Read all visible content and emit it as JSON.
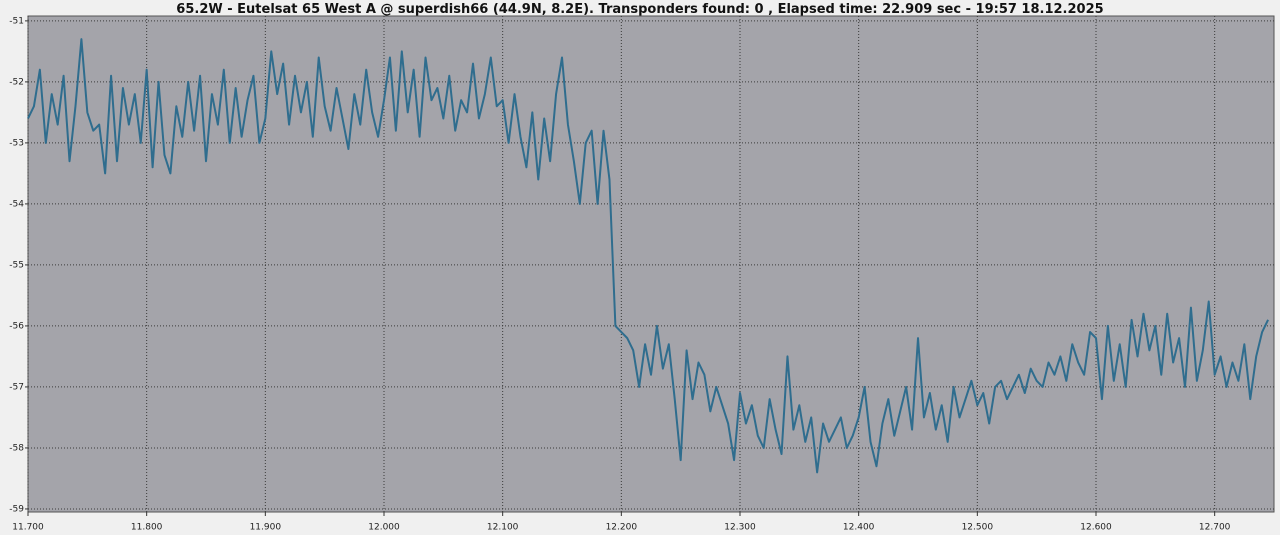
{
  "chart_data": {
    "type": "line",
    "title": "65.2W - Eutelsat 65 West A @ superdish66 (44.9N, 8.2E). Transponders found: 0 , Elapsed time: 22.909 sec - 19:57 18.12.2025",
    "color": "#2f6d8e",
    "grid": true,
    "xlim": [
      11.7,
      12.75
    ],
    "ylim": [
      -59.05,
      -50.92
    ],
    "xticks": [
      {
        "value": 11.7,
        "label": "11.700"
      },
      {
        "value": 11.8,
        "label": "11.800"
      },
      {
        "value": 11.9,
        "label": "11.900"
      },
      {
        "value": 12.0,
        "label": "12.000"
      },
      {
        "value": 12.1,
        "label": "12.100"
      },
      {
        "value": 12.2,
        "label": "12.200"
      },
      {
        "value": 12.3,
        "label": "12.300"
      },
      {
        "value": 12.4,
        "label": "12.400"
      },
      {
        "value": 12.5,
        "label": "12.500"
      },
      {
        "value": 12.6,
        "label": "12.600"
      },
      {
        "value": 12.7,
        "label": "12.700"
      }
    ],
    "yticks": [
      -51,
      -52,
      -53,
      -54,
      -55,
      -56,
      -57,
      -58,
      -59
    ],
    "x": [
      11.7,
      11.705,
      11.71,
      11.715,
      11.72,
      11.725,
      11.73,
      11.735,
      11.74,
      11.745,
      11.75,
      11.755,
      11.76,
      11.765,
      11.77,
      11.775,
      11.78,
      11.785,
      11.79,
      11.795,
      11.8,
      11.805,
      11.81,
      11.815,
      11.82,
      11.825,
      11.83,
      11.835,
      11.84,
      11.845,
      11.85,
      11.855,
      11.86,
      11.865,
      11.87,
      11.875,
      11.88,
      11.885,
      11.89,
      11.895,
      11.9,
      11.905,
      11.91,
      11.915,
      11.92,
      11.925,
      11.93,
      11.935,
      11.94,
      11.945,
      11.95,
      11.955,
      11.96,
      11.965,
      11.97,
      11.975,
      11.98,
      11.985,
      11.99,
      11.995,
      12.0,
      12.005,
      12.01,
      12.015,
      12.02,
      12.025,
      12.03,
      12.035,
      12.04,
      12.045,
      12.05,
      12.055,
      12.06,
      12.065,
      12.07,
      12.075,
      12.08,
      12.085,
      12.09,
      12.095,
      12.1,
      12.105,
      12.11,
      12.115,
      12.12,
      12.125,
      12.13,
      12.135,
      12.14,
      12.145,
      12.15,
      12.155,
      12.16,
      12.165,
      12.17,
      12.175,
      12.18,
      12.185,
      12.19,
      12.195,
      12.2,
      12.205,
      12.21,
      12.215,
      12.22,
      12.225,
      12.23,
      12.235,
      12.24,
      12.245,
      12.25,
      12.255,
      12.26,
      12.265,
      12.27,
      12.275,
      12.28,
      12.285,
      12.29,
      12.295,
      12.3,
      12.305,
      12.31,
      12.315,
      12.32,
      12.325,
      12.33,
      12.335,
      12.34,
      12.345,
      12.35,
      12.355,
      12.36,
      12.365,
      12.37,
      12.375,
      12.38,
      12.385,
      12.39,
      12.395,
      12.4,
      12.405,
      12.41,
      12.415,
      12.42,
      12.425,
      12.43,
      12.435,
      12.44,
      12.445,
      12.45,
      12.455,
      12.46,
      12.465,
      12.47,
      12.475,
      12.48,
      12.485,
      12.49,
      12.495,
      12.5,
      12.505,
      12.51,
      12.515,
      12.52,
      12.525,
      12.53,
      12.535,
      12.54,
      12.545,
      12.55,
      12.555,
      12.56,
      12.565,
      12.57,
      12.575,
      12.58,
      12.585,
      12.59,
      12.595,
      12.6,
      12.605,
      12.61,
      12.615,
      12.62,
      12.625,
      12.63,
      12.635,
      12.64,
      12.645,
      12.65,
      12.655,
      12.66,
      12.665,
      12.67,
      12.675,
      12.68,
      12.685,
      12.69,
      12.695,
      12.7,
      12.705,
      12.71,
      12.715,
      12.72,
      12.725,
      12.73,
      12.735,
      12.74,
      12.745
    ],
    "values": [
      -52.6,
      -52.4,
      -51.8,
      -53.0,
      -52.2,
      -52.7,
      -51.9,
      -53.3,
      -52.4,
      -51.3,
      -52.5,
      -52.8,
      -52.7,
      -53.5,
      -51.9,
      -53.3,
      -52.1,
      -52.7,
      -52.2,
      -53.0,
      -51.8,
      -53.4,
      -52.0,
      -53.2,
      -53.5,
      -52.4,
      -52.9,
      -52.0,
      -52.8,
      -51.9,
      -53.3,
      -52.2,
      -52.7,
      -51.8,
      -53.0,
      -52.1,
      -52.9,
      -52.3,
      -51.9,
      -53.0,
      -52.6,
      -51.5,
      -52.2,
      -51.7,
      -52.7,
      -51.9,
      -52.5,
      -52.0,
      -52.9,
      -51.6,
      -52.4,
      -52.8,
      -52.1,
      -52.6,
      -53.1,
      -52.2,
      -52.7,
      -51.8,
      -52.5,
      -52.9,
      -52.3,
      -51.6,
      -52.8,
      -51.5,
      -52.5,
      -51.8,
      -52.9,
      -51.6,
      -52.3,
      -52.1,
      -52.6,
      -51.9,
      -52.8,
      -52.3,
      -52.5,
      -51.7,
      -52.6,
      -52.2,
      -51.6,
      -52.4,
      -52.3,
      -53.0,
      -52.2,
      -52.9,
      -53.4,
      -52.5,
      -53.6,
      -52.6,
      -53.3,
      -52.2,
      -51.6,
      -52.7,
      -53.3,
      -54.0,
      -53.0,
      -52.8,
      -54.0,
      -52.8,
      -53.6,
      -56.0,
      -56.1,
      -56.2,
      -56.4,
      -57.0,
      -56.3,
      -56.8,
      -56.0,
      -56.7,
      -56.3,
      -57.2,
      -58.2,
      -56.4,
      -57.2,
      -56.6,
      -56.8,
      -57.4,
      -57.0,
      -57.3,
      -57.6,
      -58.2,
      -57.1,
      -57.6,
      -57.3,
      -57.8,
      -58.0,
      -57.2,
      -57.7,
      -58.1,
      -56.5,
      -57.7,
      -57.3,
      -57.9,
      -57.5,
      -58.4,
      -57.6,
      -57.9,
      -57.7,
      -57.5,
      -58.0,
      -57.8,
      -57.5,
      -57.0,
      -57.9,
      -58.3,
      -57.6,
      -57.2,
      -57.8,
      -57.4,
      -57.0,
      -57.7,
      -56.2,
      -57.5,
      -57.1,
      -57.7,
      -57.3,
      -57.9,
      -57.0,
      -57.5,
      -57.2,
      -56.9,
      -57.3,
      -57.1,
      -57.6,
      -57.0,
      -56.9,
      -57.2,
      -57.0,
      -56.8,
      -57.1,
      -56.7,
      -56.9,
      -57.0,
      -56.6,
      -56.8,
      -56.5,
      -56.9,
      -56.3,
      -56.6,
      -56.8,
      -56.1,
      -56.2,
      -57.2,
      -56.0,
      -56.9,
      -56.3,
      -57.0,
      -55.9,
      -56.5,
      -55.8,
      -56.4,
      -56.0,
      -56.8,
      -55.8,
      -56.6,
      -56.2,
      -57.0,
      -55.7,
      -56.9,
      -56.4,
      -55.6,
      -56.8,
      -56.5,
      -57.0,
      -56.6,
      -56.9,
      -56.3,
      -57.2,
      -56.5,
      -56.1,
      -55.9
    ]
  }
}
